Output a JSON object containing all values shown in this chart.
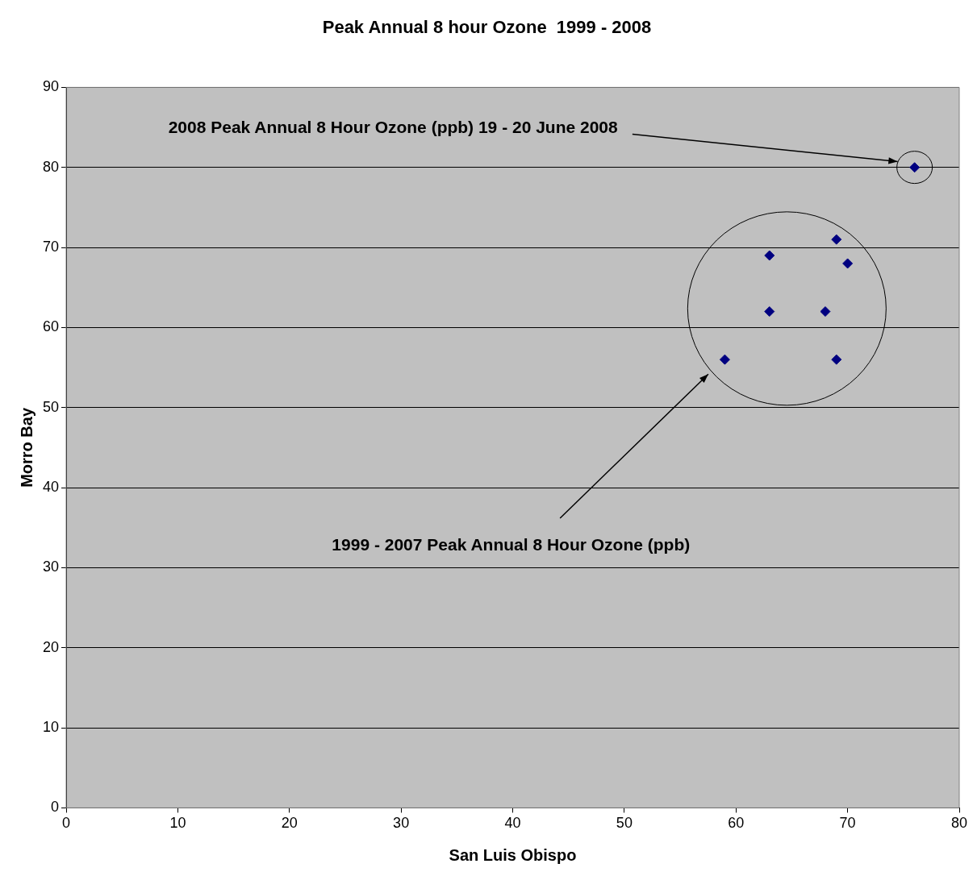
{
  "chart_data": {
    "type": "scatter",
    "title": "Peak Annual 8 hour Ozone  1999 - 2008",
    "xlabel": "San Luis Obispo",
    "ylabel": "Morro Bay",
    "series": [
      {
        "color": "#000080",
        "x": [
          59,
          63,
          63,
          68,
          69,
          70,
          69,
          76
        ],
        "values": [
          56,
          69,
          62,
          62,
          71,
          68,
          56,
          80
        ]
      }
    ],
    "xlim": [
      0,
      80
    ],
    "xticks": [
      0,
      10,
      20,
      30,
      40,
      50,
      60,
      70,
      80
    ],
    "ylim": [
      0,
      90
    ],
    "yticks": [
      0,
      10,
      20,
      30,
      40,
      50,
      60,
      70,
      80,
      90
    ],
    "grid": "y",
    "legend": false,
    "marker": "diamond",
    "annotations": [
      "2008 Peak Annual 8 Hour Ozone (ppb) 19 - 20 June 2008",
      "1999 - 2007 Peak Annual 8 Hour Ozone (ppb)"
    ]
  }
}
